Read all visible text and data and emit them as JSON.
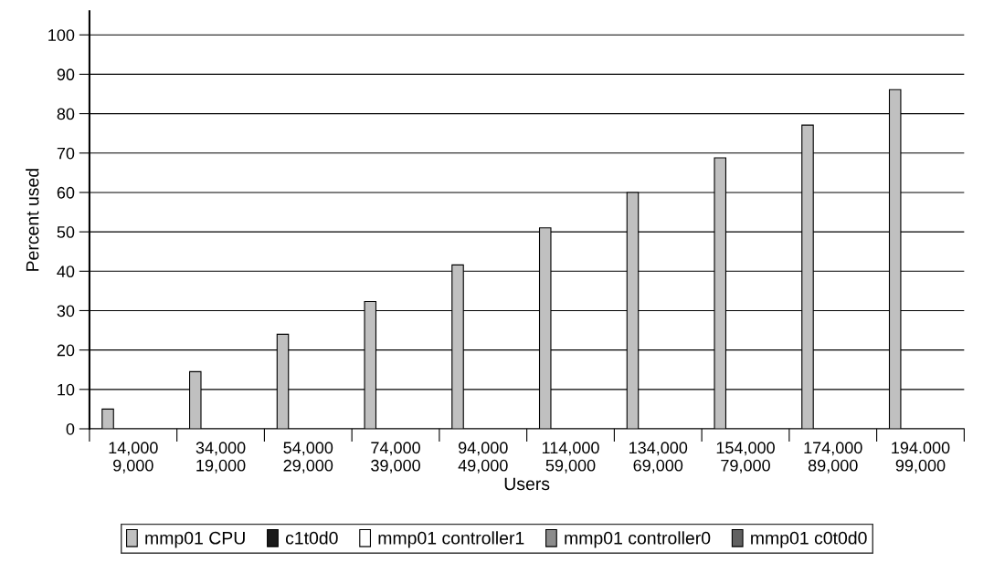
{
  "chart_data": {
    "type": "bar",
    "xlabel": "Users",
    "ylabel": "Percent used",
    "categories": [
      "14,000\n9,000",
      "34,000\n19,000",
      "54,000\n29,000",
      "74,000\n39,000",
      "94,000\n49,000",
      "114,000\n59,000",
      "134,000\n69,000",
      "154,000\n79,000",
      "174,000\n89,000",
      "194.000\n99,000"
    ],
    "series": [
      {
        "name": "mmp01 CPU",
        "color": "#c0c0c0",
        "values": [
          5,
          14.5,
          24,
          32.3,
          41.6,
          51,
          60,
          68.8,
          77.1,
          86.1
        ]
      },
      {
        "name": "c1t0d0",
        "color": "#1a1a1a",
        "values": [
          0,
          0,
          0,
          0,
          0,
          0,
          0,
          0,
          0,
          0
        ]
      },
      {
        "name": "mmp01 controller1",
        "color": "#ffffff",
        "values": [
          0,
          0,
          0,
          0,
          0,
          0,
          0,
          0,
          0,
          0
        ]
      },
      {
        "name": "mmp01 controller0",
        "color": "#8c8c8c",
        "values": [
          0,
          0,
          0,
          0,
          0,
          0,
          0,
          0,
          0,
          0
        ]
      },
      {
        "name": "mmp01 c0t0d0",
        "color": "#606060",
        "values": [
          0,
          0,
          0,
          0,
          0,
          0,
          0,
          0,
          0,
          0
        ]
      }
    ],
    "ylim": [
      0,
      106
    ],
    "yticks": [
      0,
      10,
      20,
      30,
      40,
      50,
      60,
      70,
      80,
      90,
      100
    ],
    "grid": "y",
    "legend": "bottom"
  }
}
